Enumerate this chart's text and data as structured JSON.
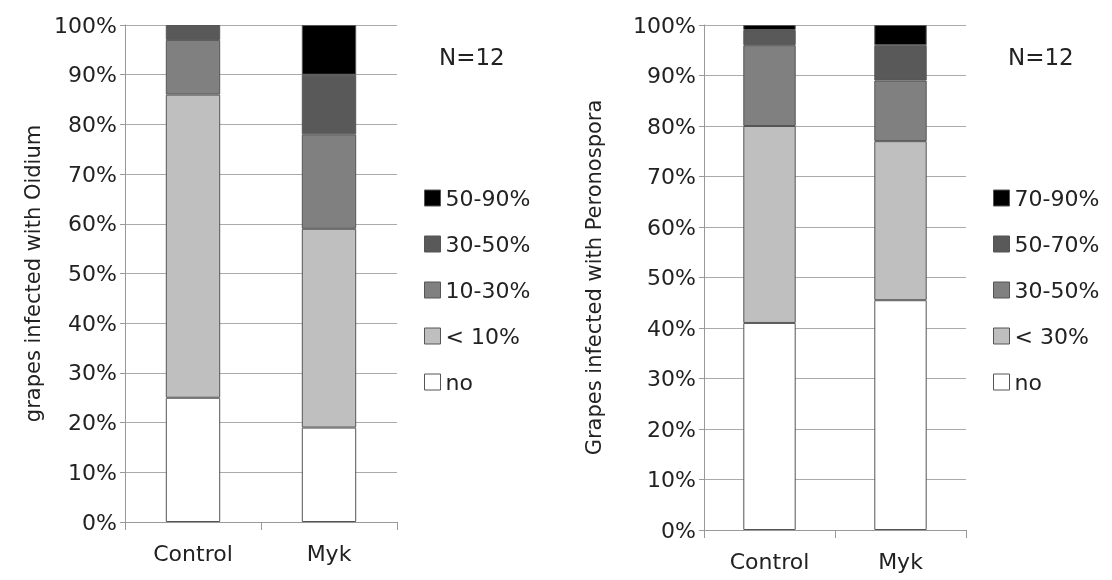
{
  "chart_data": [
    {
      "type": "bar",
      "stacked": true,
      "categories": [
        "Control",
        "Myk"
      ],
      "ylabel": "grapes infected with Oidium",
      "annotations": [
        "N=12"
      ],
      "ylim": [
        0,
        100
      ],
      "yticks": [
        {
          "value": 0,
          "label": "0%"
        },
        {
          "value": 10,
          "label": "10%"
        },
        {
          "value": 20,
          "label": "20%"
        },
        {
          "value": 30,
          "label": "30%"
        },
        {
          "value": 40,
          "label": "40%"
        },
        {
          "value": 50,
          "label": "50%"
        },
        {
          "value": 60,
          "label": "60%"
        },
        {
          "value": 70,
          "label": "70%"
        },
        {
          "value": 80,
          "label": "80%"
        },
        {
          "value": 90,
          "label": "90%"
        },
        {
          "value": 100,
          "label": "100%"
        }
      ],
      "grid": "y",
      "legend": "right",
      "series": [
        {
          "name": "no",
          "color": "#ffffff",
          "values": [
            25,
            19
          ]
        },
        {
          "name": "< 10%",
          "color": "#bfbfbf",
          "values": [
            61,
            40
          ]
        },
        {
          "name": "10-30%",
          "color": "#808080",
          "values": [
            11,
            19
          ]
        },
        {
          "name": "30-50%",
          "color": "#595959",
          "values": [
            3,
            12
          ]
        },
        {
          "name": "50-90%",
          "color": "#000000",
          "values": [
            0,
            10
          ]
        }
      ]
    },
    {
      "type": "bar",
      "stacked": true,
      "categories": [
        "Control",
        "Myk"
      ],
      "ylabel": "Grapes infected with Peronospora",
      "annotations": [
        "N=12"
      ],
      "ylim": [
        0,
        100
      ],
      "yticks": [
        {
          "value": 0,
          "label": "0%"
        },
        {
          "value": 10,
          "label": "10%"
        },
        {
          "value": 20,
          "label": "20%"
        },
        {
          "value": 30,
          "label": "30%"
        },
        {
          "value": 40,
          "label": "40%"
        },
        {
          "value": 50,
          "label": "50%"
        },
        {
          "value": 60,
          "label": "60%"
        },
        {
          "value": 70,
          "label": "70%"
        },
        {
          "value": 80,
          "label": "80%"
        },
        {
          "value": 90,
          "label": "90%"
        },
        {
          "value": 100,
          "label": "100%"
        }
      ],
      "grid": "y",
      "legend": "right",
      "series": [
        {
          "name": "no",
          "color": "#ffffff",
          "values": [
            41,
            45.5
          ]
        },
        {
          "name": "< 30%",
          "color": "#bfbfbf",
          "values": [
            39,
            31.5
          ]
        },
        {
          "name": "30-50%",
          "color": "#808080",
          "values": [
            16,
            12
          ]
        },
        {
          "name": "50-70%",
          "color": "#595959",
          "values": [
            3,
            7
          ]
        },
        {
          "name": "70-90%",
          "color": "#000000",
          "values": [
            1,
            4
          ]
        }
      ]
    }
  ]
}
